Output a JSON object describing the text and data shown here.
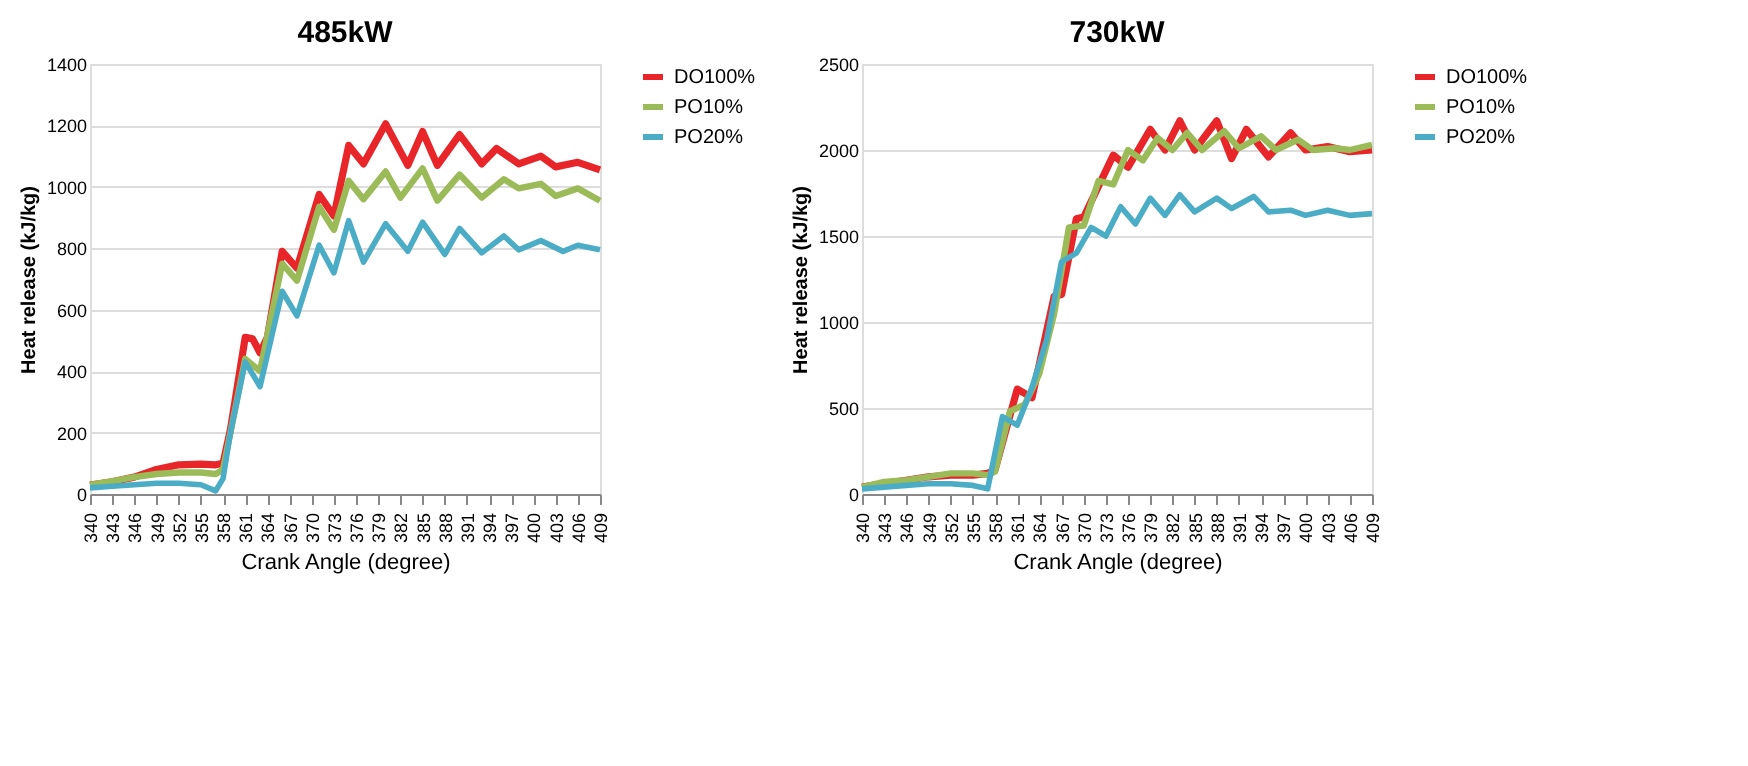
{
  "chart_data": [
    {
      "type": "line",
      "title": "485kW",
      "xlabel": "Crank Angle (degree)",
      "ylabel": "Heat release (kJ/kg)",
      "xlim": [
        340,
        409
      ],
      "xticks": [
        340,
        343,
        346,
        349,
        352,
        355,
        358,
        361,
        364,
        367,
        370,
        373,
        376,
        379,
        382,
        385,
        388,
        391,
        394,
        397,
        400,
        403,
        406,
        409
      ],
      "ylim": [
        0,
        1400
      ],
      "yticks": [
        0,
        200,
        400,
        600,
        800,
        1000,
        1200,
        1400
      ],
      "grid": "y",
      "legend": "right",
      "marker": "none",
      "line_style": "solid",
      "series": [
        {
          "name": "DO100%",
          "color": "#e8262a",
          "x": [
            340,
            343,
            346,
            349,
            352,
            355,
            357,
            358,
            359,
            361,
            362,
            363,
            364,
            366,
            368,
            371,
            373,
            375,
            377,
            380,
            383,
            385,
            387,
            390,
            393,
            395,
            398,
            401,
            403,
            406,
            409
          ],
          "values": [
            29,
            40,
            55,
            80,
            95,
            97,
            95,
            100,
            210,
            510,
            505,
            460,
            510,
            790,
            735,
            975,
            905,
            1135,
            1075,
            1205,
            1070,
            1180,
            1070,
            1170,
            1075,
            1125,
            1075,
            1100,
            1065,
            1080,
            1055
          ]
        },
        {
          "name": "PO10%",
          "color": "#9bbb59",
          "x": [
            340,
            343,
            346,
            349,
            352,
            355,
            357,
            358,
            359,
            361,
            363,
            366,
            368,
            371,
            373,
            375,
            377,
            380,
            382,
            385,
            387,
            390,
            393,
            396,
            398,
            401,
            403,
            406,
            409
          ],
          "values": [
            30,
            42,
            55,
            65,
            70,
            70,
            65,
            80,
            200,
            440,
            400,
            750,
            695,
            935,
            860,
            1020,
            960,
            1050,
            965,
            1060,
            955,
            1040,
            965,
            1025,
            995,
            1010,
            970,
            995,
            955
          ]
        },
        {
          "name": "PO20%",
          "color": "#4bacc6",
          "x": [
            340,
            343,
            346,
            349,
            352,
            355,
            357,
            358,
            359,
            361,
            363,
            366,
            368,
            371,
            373,
            375,
            377,
            380,
            383,
            385,
            388,
            390,
            393,
            396,
            398,
            401,
            404,
            406,
            409
          ],
          "values": [
            20,
            25,
            30,
            35,
            35,
            30,
            10,
            50,
            200,
            430,
            350,
            660,
            580,
            810,
            720,
            890,
            755,
            880,
            790,
            885,
            780,
            865,
            785,
            840,
            795,
            825,
            790,
            810,
            795
          ]
        }
      ]
    },
    {
      "type": "line",
      "title": "730kW",
      "xlabel": "Crank Angle (degree)",
      "ylabel": "Heat release (kJ/kg)",
      "xlim": [
        340,
        409
      ],
      "xticks": [
        340,
        343,
        346,
        349,
        352,
        355,
        358,
        361,
        364,
        367,
        370,
        373,
        376,
        379,
        382,
        385,
        388,
        391,
        394,
        397,
        400,
        403,
        406,
        409
      ],
      "ylim": [
        0,
        2500
      ],
      "yticks": [
        0,
        500,
        1000,
        1500,
        2000,
        2500
      ],
      "grid": "y",
      "legend": "right",
      "marker": "none",
      "line_style": "solid",
      "series": [
        {
          "name": "DO100%",
          "color": "#e8262a",
          "x": [
            340,
            343,
            346,
            349,
            352,
            355,
            357,
            358,
            361,
            363,
            366,
            367,
            369,
            370,
            374,
            376,
            379,
            381,
            383,
            385,
            388,
            390,
            392,
            395,
            398,
            400,
            403,
            406,
            409
          ],
          "values": [
            40,
            60,
            80,
            100,
            110,
            110,
            120,
            140,
            610,
            560,
            1150,
            1160,
            1600,
            1610,
            1970,
            1900,
            2120,
            2000,
            2170,
            2000,
            2170,
            1950,
            2120,
            1960,
            2100,
            2000,
            2020,
            1990,
            2000
          ]
        },
        {
          "name": "PO10%",
          "color": "#9bbb59",
          "x": [
            340,
            343,
            346,
            349,
            352,
            355,
            357,
            358,
            360,
            362,
            364,
            366,
            368,
            370,
            372,
            374,
            376,
            378,
            380,
            382,
            384,
            386,
            389,
            391,
            394,
            396,
            399,
            401,
            404,
            406,
            409
          ],
          "values": [
            40,
            70,
            80,
            100,
            120,
            120,
            110,
            130,
            480,
            520,
            700,
            1050,
            1550,
            1560,
            1820,
            1800,
            2000,
            1940,
            2070,
            2000,
            2100,
            2000,
            2110,
            2010,
            2080,
            2000,
            2060,
            2000,
            2010,
            2000,
            2030
          ]
        },
        {
          "name": "PO20%",
          "color": "#4bacc6",
          "x": [
            340,
            343,
            346,
            349,
            352,
            355,
            357,
            359,
            361,
            363,
            365,
            367,
            369,
            371,
            373,
            375,
            377,
            379,
            381,
            383,
            385,
            388,
            390,
            393,
            395,
            398,
            400,
            403,
            406,
            409
          ],
          "values": [
            30,
            40,
            50,
            60,
            60,
            50,
            30,
            450,
            400,
            620,
            900,
            1350,
            1400,
            1550,
            1500,
            1670,
            1570,
            1720,
            1620,
            1740,
            1640,
            1720,
            1660,
            1730,
            1640,
            1650,
            1620,
            1650,
            1620,
            1630
          ]
        }
      ]
    }
  ]
}
